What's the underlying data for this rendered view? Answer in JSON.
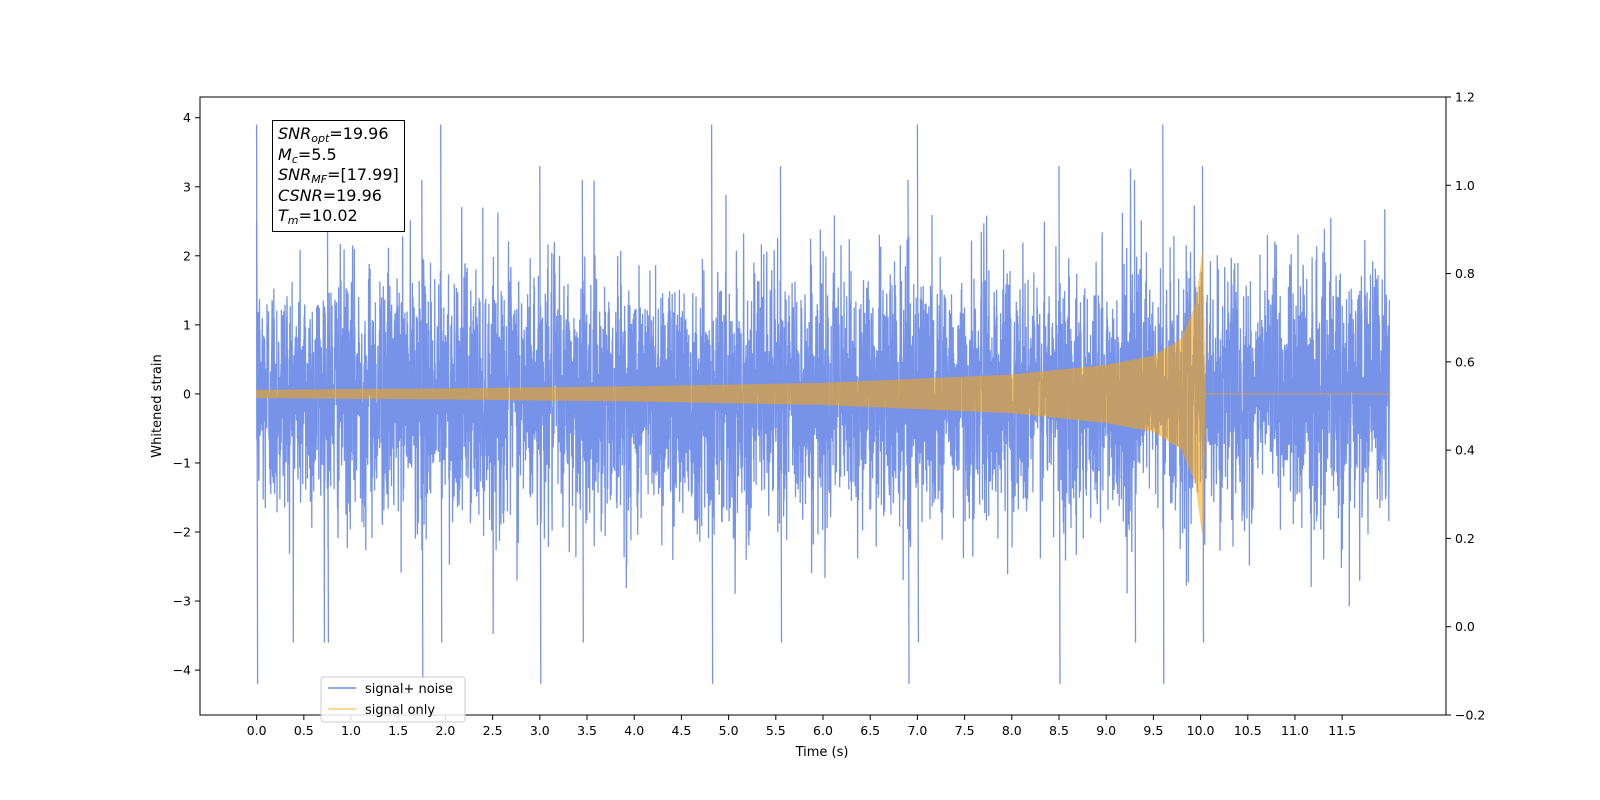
{
  "chart_data": {
    "type": "line",
    "title": "",
    "xlabel": "Time (s)",
    "ylabel": "Whitened strain",
    "xlim": [
      -0.6,
      12.6
    ],
    "ylim": [
      -4.65,
      4.3
    ],
    "y2lim": [
      -0.2,
      1.2
    ],
    "xticks": [
      "0.0",
      "0.5",
      "1.0",
      "1.5",
      "2.0",
      "2.5",
      "3.0",
      "3.5",
      "4.0",
      "4.5",
      "5.0",
      "5.5",
      "6.0",
      "6.5",
      "7.0",
      "7.5",
      "8.0",
      "8.5",
      "9.0",
      "9.5",
      "10.0",
      "10.5",
      "11.0",
      "11.5"
    ],
    "yticks": [
      "4",
      "3",
      "2",
      "1",
      "0",
      "−1",
      "−2",
      "−3",
      "−4"
    ],
    "y2ticks": [
      "1.2",
      "1.0",
      "0.8",
      "0.6",
      "0.4",
      "0.2",
      "0.0",
      "−0.2"
    ],
    "grid": false,
    "legend_position": "lower-left",
    "colors": {
      "signal_noise": "#4169E1",
      "signal_only": "#FFA500"
    },
    "series": [
      {
        "name": "signal+ noise",
        "t_start": 0.0,
        "t_end": 12.0,
        "noise_std": 0.9,
        "max": 3.9,
        "min": -4.2,
        "peak_times": [
          0.0,
          0.75,
          1.75,
          1.95,
          3.0,
          3.45,
          4.82,
          5.55,
          6.9,
          7.0,
          8.5,
          9.3,
          9.6,
          10.02
        ]
      },
      {
        "name": "signal only",
        "t_start": 0.0,
        "t_end": 12.0,
        "merger_time": 10.02,
        "envelope": [
          {
            "t": 0.0,
            "amp": 0.06
          },
          {
            "t": 2.0,
            "amp": 0.08
          },
          {
            "t": 4.0,
            "amp": 0.11
          },
          {
            "t": 6.0,
            "amp": 0.16
          },
          {
            "t": 8.0,
            "amp": 0.28
          },
          {
            "t": 9.0,
            "amp": 0.42
          },
          {
            "t": 9.5,
            "amp": 0.55
          },
          {
            "t": 9.8,
            "amp": 0.8
          },
          {
            "t": 9.95,
            "amp": 1.3
          },
          {
            "t": 10.02,
            "amp": 2.05
          },
          {
            "t": 10.05,
            "amp": 0.0
          },
          {
            "t": 12.0,
            "amp": 0.0
          }
        ]
      }
    ],
    "annotation": {
      "snr_opt": "19.96",
      "mc": "5.5",
      "snr_mf": "[17.99]",
      "csnr": "19.96",
      "tm": "10.02"
    }
  },
  "info_box": {
    "snr_opt_main": "SNR",
    "snr_opt_sub": "opt",
    "snr_opt_value": "=19.96",
    "mc_main": "M",
    "mc_sub": "c",
    "mc_value": "=5.5",
    "snr_mf_main": "SNR",
    "snr_mf_sub": "MF",
    "snr_mf_value": "=[17.99]",
    "csnr_main": "CSNR",
    "csnr_value": "=19.96",
    "tm_main": "T",
    "tm_sub": "m",
    "tm_value": "=10.02"
  },
  "legend": {
    "signal_noise_label": "signal+ noise",
    "signal_only_label": "signal only"
  }
}
